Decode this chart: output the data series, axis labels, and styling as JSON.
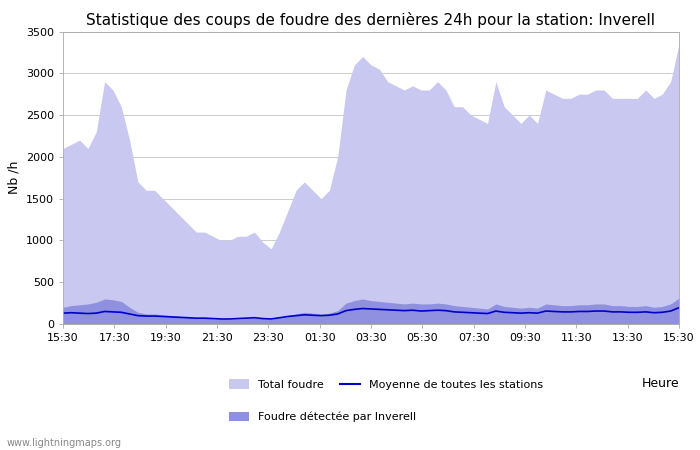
{
  "title": "Statistique des coups de foudre des dernières 24h pour la station: Inverell",
  "ylabel": "Nb /h",
  "xlabel_heure": "Heure",
  "watermark": "www.lightningmaps.org",
  "ylim": [
    0,
    3500
  ],
  "yticks": [
    0,
    500,
    1000,
    1500,
    2000,
    2500,
    3000,
    3500
  ],
  "x_labels": [
    "15:30",
    "17:30",
    "19:30",
    "21:30",
    "23:30",
    "01:30",
    "03:30",
    "05:30",
    "07:30",
    "09:30",
    "11:30",
    "13:30",
    "15:30"
  ],
  "color_total": "#c8c8f0",
  "color_inverell": "#9090e0",
  "color_moyenne": "#0000cc",
  "bg_color": "#ffffff",
  "grid_color": "#cccccc",
  "total_foudre": [
    2100,
    2150,
    2200,
    2100,
    2300,
    2900,
    2800,
    2600,
    2200,
    1700,
    1600,
    1600,
    1500,
    1400,
    1300,
    1200,
    1100,
    1100,
    1050,
    1000,
    1000,
    1050,
    1050,
    1100,
    980,
    900,
    1100,
    1350,
    1600,
    1700,
    1600,
    1500,
    1600,
    2000,
    2800,
    3100,
    3200,
    3100,
    3050,
    2900,
    2850,
    2800,
    2850,
    2800,
    2800,
    2900,
    2800,
    2600,
    2600,
    2500,
    2450,
    2400,
    2900,
    2600,
    2500,
    2400,
    2500,
    2400,
    2800,
    2750,
    2700,
    2700,
    2750,
    2750,
    2800,
    2800,
    2700,
    2700,
    2700,
    2700,
    2800,
    2700,
    2750,
    2900,
    3350
  ],
  "foudre_inverell": [
    200,
    220,
    230,
    240,
    260,
    300,
    290,
    270,
    200,
    140,
    120,
    120,
    110,
    100,
    90,
    80,
    70,
    70,
    60,
    55,
    55,
    60,
    65,
    70,
    65,
    55,
    80,
    100,
    120,
    140,
    130,
    120,
    130,
    160,
    250,
    280,
    300,
    280,
    270,
    260,
    250,
    240,
    250,
    240,
    240,
    250,
    240,
    220,
    210,
    200,
    190,
    180,
    240,
    210,
    200,
    190,
    200,
    190,
    240,
    230,
    220,
    220,
    230,
    230,
    240,
    240,
    220,
    220,
    210,
    210,
    220,
    200,
    210,
    240,
    310
  ],
  "moyenne": [
    130,
    135,
    130,
    125,
    130,
    150,
    145,
    140,
    120,
    100,
    95,
    95,
    90,
    85,
    80,
    75,
    70,
    70,
    65,
    60,
    60,
    65,
    70,
    75,
    65,
    60,
    75,
    90,
    100,
    110,
    105,
    100,
    105,
    120,
    160,
    175,
    185,
    180,
    175,
    170,
    165,
    160,
    165,
    155,
    160,
    165,
    160,
    145,
    140,
    135,
    130,
    125,
    155,
    140,
    135,
    130,
    135,
    130,
    155,
    150,
    145,
    145,
    150,
    150,
    155,
    155,
    145,
    145,
    140,
    140,
    145,
    135,
    140,
    155,
    195
  ],
  "n_points": 75,
  "title_fontsize": 11,
  "axis_fontsize": 9,
  "tick_fontsize": 8,
  "legend_fontsize": 8
}
